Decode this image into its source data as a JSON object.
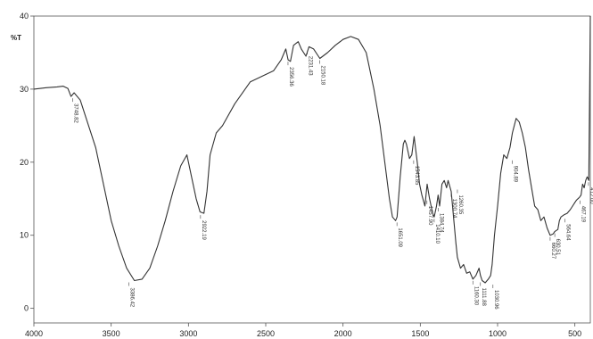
{
  "chart_data": {
    "type": "line",
    "ylabel": "%T",
    "xlim": [
      4000,
      400
    ],
    "ylim": [
      -2,
      40
    ],
    "x_ticks": [
      "4000",
      "3500",
      "3000",
      "2500",
      "2000",
      "1500",
      "1000",
      "500"
    ],
    "x_tick_values": [
      4000,
      3500,
      3000,
      2500,
      2000,
      1500,
      1000,
      500
    ],
    "y_ticks": [
      "40",
      "30",
      "20",
      "10",
      "0"
    ],
    "y_tick_values": [
      40,
      30,
      20,
      10,
      0
    ],
    "line_color": "#333333",
    "series": [
      {
        "x": [
          4000,
          3920,
          3850,
          3810,
          3780,
          3760,
          3740,
          3700,
          3600,
          3500,
          3450,
          3400,
          3350,
          3300,
          3250,
          3200,
          3150,
          3100,
          3050,
          3010,
          2980,
          2950,
          2925,
          2900,
          2880,
          2860,
          2820,
          2780,
          2700,
          2600,
          2500,
          2450,
          2400,
          2370,
          2355,
          2340,
          2320,
          2290,
          2270,
          2240,
          2220,
          2190,
          2150,
          2100,
          2050,
          2000,
          1950,
          1900,
          1850,
          1800,
          1760,
          1730,
          1700,
          1680,
          1660,
          1650,
          1630,
          1610,
          1600,
          1590,
          1570,
          1555,
          1540,
          1520,
          1505,
          1490,
          1470,
          1456,
          1440,
          1420,
          1410,
          1395,
          1385,
          1375,
          1360,
          1345,
          1330,
          1320,
          1300,
          1285,
          1270,
          1260,
          1240,
          1220,
          1200,
          1180,
          1160,
          1140,
          1120,
          1111,
          1100,
          1080,
          1060,
          1045,
          1035,
          1020,
          1000,
          980,
          960,
          940,
          920,
          904,
          880,
          860,
          840,
          820,
          800,
          780,
          760,
          740,
          720,
          700,
          680,
          660,
          640,
          630,
          610,
          600,
          590,
          570,
          550,
          530,
          515,
          500,
          490,
          480,
          470,
          460,
          450,
          440,
          430,
          420,
          410,
          400
        ],
        "y": [
          30.0,
          30.2,
          30.3,
          30.4,
          30.1,
          29.0,
          29.5,
          28.5,
          22.0,
          12.0,
          8.5,
          5.5,
          3.8,
          4.0,
          5.5,
          8.5,
          12.0,
          16.0,
          19.5,
          21.0,
          18.0,
          15.0,
          13.2,
          13.0,
          16.0,
          21.0,
          24.0,
          25.0,
          28.0,
          31.0,
          32.0,
          32.5,
          34.0,
          35.5,
          34.0,
          33.8,
          36.0,
          36.5,
          35.5,
          34.5,
          35.8,
          35.5,
          34.2,
          35.0,
          36.0,
          36.8,
          37.2,
          36.8,
          35.0,
          30.0,
          25.0,
          20.0,
          15.0,
          12.5,
          12.0,
          12.5,
          18.0,
          22.5,
          23.0,
          22.5,
          20.5,
          21.0,
          23.5,
          20.0,
          17.0,
          15.5,
          14.0,
          17.0,
          15.0,
          13.0,
          12.5,
          14.0,
          15.5,
          14.0,
          17.0,
          17.5,
          16.5,
          17.5,
          16.0,
          12.5,
          9.0,
          7.0,
          5.5,
          6.0,
          4.8,
          5.0,
          4.0,
          4.5,
          5.5,
          4.5,
          3.8,
          3.5,
          4.0,
          4.5,
          6.0,
          10.0,
          14.0,
          18.5,
          21.0,
          20.5,
          22.0,
          24.0,
          26.0,
          25.5,
          24.0,
          22.0,
          19.0,
          16.5,
          14.0,
          13.5,
          12.0,
          12.5,
          11.0,
          10.0,
          10.2,
          10.5,
          10.8,
          12.0,
          12.5,
          12.8,
          13.0,
          13.5,
          14.0,
          14.5,
          14.8,
          15.0,
          15.2,
          15.5,
          17.0,
          16.5,
          17.5,
          18.0,
          17.5,
          40.0
        ]
      }
    ],
    "peak_labels": [
      {
        "x": 3748,
        "y": 29.0,
        "text": "3748.82"
      },
      {
        "x": 3386,
        "y": 3.8,
        "text": "3386.42"
      },
      {
        "x": 2922,
        "y": 13.0,
        "text": "2922.19"
      },
      {
        "x": 2356,
        "y": 34.0,
        "text": "2356.36"
      },
      {
        "x": 2231,
        "y": 35.5,
        "text": "2231.43"
      },
      {
        "x": 2150,
        "y": 34.2,
        "text": "2150.18"
      },
      {
        "x": 1651,
        "y": 12.0,
        "text": "1651.09"
      },
      {
        "x": 1543,
        "y": 20.5,
        "text": "1543.85"
      },
      {
        "x": 1457,
        "y": 15.0,
        "text": "1457.90"
      },
      {
        "x": 1410,
        "y": 12.5,
        "text": "1410.10"
      },
      {
        "x": 1384,
        "y": 14.0,
        "text": "1384.74"
      },
      {
        "x": 1300,
        "y": 16.0,
        "text": "1300.74"
      },
      {
        "x": 1260,
        "y": 16.5,
        "text": "1260.35"
      },
      {
        "x": 1160,
        "y": 4.0,
        "text": "1160.30"
      },
      {
        "x": 1111,
        "y": 3.8,
        "text": "1111.88"
      },
      {
        "x": 1030,
        "y": 3.5,
        "text": "1030.96"
      },
      {
        "x": 904,
        "y": 20.5,
        "text": "904.89"
      },
      {
        "x": 660,
        "y": 10.0,
        "text": "660.27"
      },
      {
        "x": 630,
        "y": 10.5,
        "text": "630.51"
      },
      {
        "x": 564,
        "y": 12.5,
        "text": "564.64"
      },
      {
        "x": 467,
        "y": 15.0,
        "text": "467.19"
      },
      {
        "x": 412,
        "y": 17.5,
        "text": "412.00"
      }
    ]
  }
}
